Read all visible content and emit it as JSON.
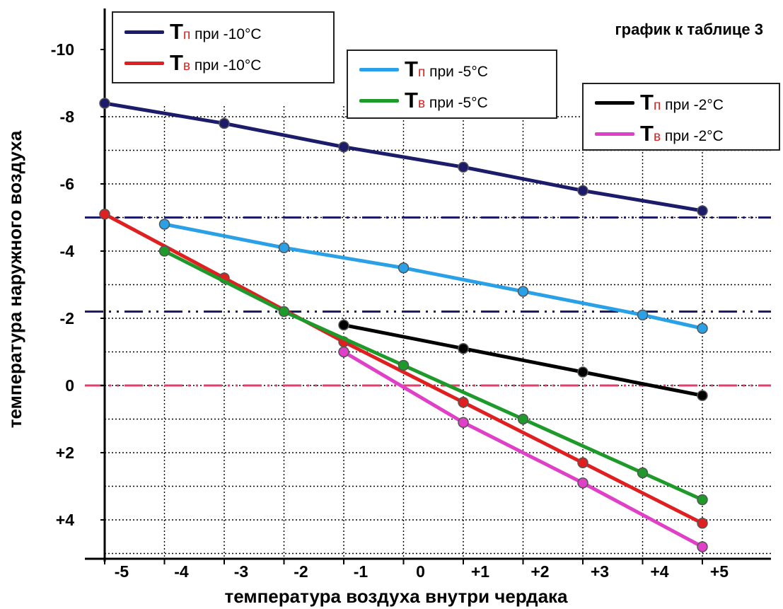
{
  "chart_data": {
    "type": "line",
    "title": "график к таблице 3",
    "xlabel": "температура воздуха внутри чердака",
    "ylabel": "температура наружного воздуха",
    "x_ticks": [
      "-5",
      "-4",
      "-3",
      "-2",
      "-1",
      "0",
      "+1",
      "+2",
      "+3",
      "+4",
      "+5"
    ],
    "y_ticks": [
      {
        "value": -10,
        "label": "-10"
      },
      {
        "value": -8,
        "label": "-8"
      },
      {
        "value": -6,
        "label": "-6"
      },
      {
        "value": -4,
        "label": "-4"
      },
      {
        "value": -2,
        "label": "-2"
      },
      {
        "value": 0,
        "label": "0"
      },
      {
        "value": 2,
        "label": "+2"
      },
      {
        "value": 4,
        "label": "+4"
      }
    ],
    "xlim": [
      -5,
      5
    ],
    "ylim": [
      -10.5,
      5.5
    ],
    "y_direction": "negative values at top, positive at bottom",
    "grid": "dotted",
    "reference_lines": [
      {
        "y": -5,
        "color": "#1c1c6b",
        "style": "dash-dot"
      },
      {
        "y": -2.2,
        "color": "#1c1c6b",
        "style": "dash-dot"
      },
      {
        "y": 0,
        "color": "#e0406e",
        "style": "dash-dot"
      }
    ],
    "series": [
      {
        "name": "Тп при -10°C",
        "color": "#1c1c6b",
        "x": [
          -5,
          -3,
          -1,
          1,
          3,
          5
        ],
        "y": [
          -8.4,
          -7.8,
          -7.1,
          -6.5,
          -5.8,
          -5.2
        ]
      },
      {
        "name": "Тв при -10°C",
        "color": "#e02020",
        "x": [
          -5,
          -3,
          -1,
          1,
          3,
          5
        ],
        "y": [
          -5.1,
          -3.2,
          -1.3,
          0.5,
          2.3,
          4.1
        ]
      },
      {
        "name": "Тп при -5°C",
        "color": "#2aa0e6",
        "x": [
          -4,
          -2,
          0,
          2,
          4,
          5
        ],
        "y": [
          -4.8,
          -4.1,
          -3.5,
          -2.8,
          -2.1,
          -1.7
        ]
      },
      {
        "name": "Тв при -5°C",
        "color": "#1e9a2a",
        "x": [
          -4,
          -2,
          0,
          2,
          4,
          5
        ],
        "y": [
          -4.0,
          -2.2,
          -0.6,
          1.0,
          2.6,
          3.4
        ]
      },
      {
        "name": "Тп при -2°C",
        "color": "#000000",
        "x": [
          -1,
          1,
          3,
          5
        ],
        "y": [
          -1.8,
          -1.1,
          -0.4,
          0.3
        ]
      },
      {
        "name": "Тв при -2°C",
        "color": "#e040c8",
        "x": [
          -1,
          1,
          3,
          5
        ],
        "y": [
          -1.0,
          1.1,
          2.9,
          4.8
        ]
      }
    ]
  },
  "legend_groups": [
    {
      "items": [
        {
          "T": "Т",
          "sub": "п",
          "rest": " при -10°C",
          "color": "#1c1c6b",
          "sub_color": "#e02020"
        },
        {
          "T": "Т",
          "sub": "в",
          "rest": " при -10°C",
          "color": "#e02020",
          "sub_color": "#e02020"
        }
      ]
    },
    {
      "items": [
        {
          "T": "Т",
          "sub": "п",
          "rest": " при -5°C",
          "color": "#2aa0e6",
          "sub_color": "#e02020"
        },
        {
          "T": "Т",
          "sub": "в",
          "rest": " при -5°C",
          "color": "#1e9a2a",
          "sub_color": "#e02020"
        }
      ]
    },
    {
      "items": [
        {
          "T": "Т",
          "sub": "п",
          "rest": " при -2°C",
          "color": "#000000",
          "sub_color": "#e02020"
        },
        {
          "T": "Т",
          "sub": "в",
          "rest": " при -2°C",
          "color": "#e040c8",
          "sub_color": "#e02020"
        }
      ]
    }
  ]
}
